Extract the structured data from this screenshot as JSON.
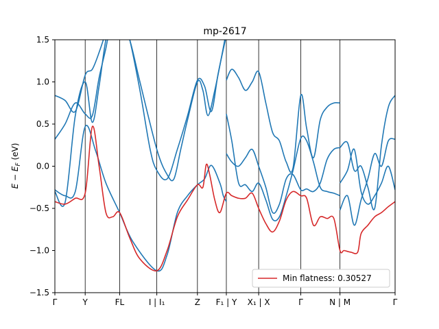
{
  "chart_data": {
    "type": "line",
    "title": "mp-2617",
    "xlabel": "",
    "ylabel": "E − E_F (eV)",
    "ylim": [
      -1.5,
      1.5
    ],
    "yticks": [
      -1.5,
      -1.0,
      -0.5,
      0.0,
      0.5,
      1.0,
      1.5
    ],
    "ytick_labels": [
      "−1.5",
      "−1.0",
      "−0.5",
      "0.0",
      "0.5",
      "1.0",
      "1.5"
    ],
    "xlim": [
      0,
      10
    ],
    "kpath": [
      {
        "label": "Γ",
        "x": 0.0
      },
      {
        "label": "Y",
        "x": 0.891
      },
      {
        "label": "FL",
        "x": 1.903
      },
      {
        "label": "I | I₁",
        "x": 2.996
      },
      {
        "label": "Z",
        "x": 4.19
      },
      {
        "label": "F₁ | Y",
        "x": 5.04
      },
      {
        "label": "X₁ | X",
        "x": 5.99
      },
      {
        "label": "Γ",
        "x": 7.227
      },
      {
        "label": "N | M",
        "x": 8.38
      },
      {
        "label": "Γ",
        "x": 10.0
      }
    ],
    "grid": false,
    "legend_position": "lower-right",
    "series": [
      {
        "name": "",
        "color": "#1f77b4",
        "x": [
          0.0,
          0.3,
          0.6,
          0.891,
          1.2,
          1.5,
          1.903,
          2.3,
          2.996,
          3.3,
          3.6,
          3.9,
          4.19,
          4.4,
          4.6,
          4.85,
          4.95,
          5.04
        ],
        "y": [
          -0.28,
          -0.35,
          -0.3,
          0.47,
          0.18,
          -0.2,
          -0.55,
          -0.9,
          -1.24,
          -1.05,
          -0.55,
          -0.35,
          -0.22,
          -0.15,
          0.01,
          -0.2,
          -0.35,
          -0.42
        ]
      },
      {
        "name": "",
        "color": "#1f77b4",
        "x": [
          0.0,
          0.3,
          0.6,
          0.891,
          1.1,
          1.3,
          1.5,
          1.7,
          1.903,
          2.2,
          2.5,
          2.996,
          3.3,
          3.5,
          3.7,
          3.9,
          4.19,
          4.35,
          4.5,
          4.7,
          4.9,
          5.04
        ],
        "y": [
          0.32,
          0.5,
          0.75,
          0.62,
          0.6,
          1.05,
          1.4,
          1.8,
          1.8,
          1.5,
          1.0,
          0.2,
          -0.1,
          -0.15,
          0.2,
          0.55,
          1.0,
          0.9,
          0.6,
          0.9,
          1.3,
          1.6
        ]
      },
      {
        "name": "",
        "color": "#1f77b4",
        "x": [
          0.0,
          0.3,
          0.6,
          0.891,
          1.1,
          1.3,
          1.5,
          1.7,
          1.903,
          2.2,
          2.5,
          2.8,
          2.996,
          3.3,
          3.6,
          3.9,
          4.19,
          4.4,
          4.6,
          4.8,
          5.04
        ],
        "y": [
          0.84,
          0.78,
          0.65,
          1.08,
          1.15,
          1.35,
          1.6,
          1.9,
          1.9,
          1.5,
          0.9,
          0.2,
          -0.05,
          -0.15,
          0.2,
          0.6,
          1.02,
          0.95,
          0.65,
          1.1,
          1.55
        ]
      },
      {
        "name": "",
        "color": "#1f77b4",
        "x": [
          0.0,
          0.3,
          0.6,
          0.891,
          1.1,
          1.3,
          1.5,
          1.7,
          1.903
        ],
        "y": [
          -0.3,
          -0.43,
          0.6,
          1.0,
          0.52,
          0.95,
          1.5,
          1.7,
          1.7
        ]
      },
      {
        "name": "",
        "color": "#1f77b4",
        "x": [
          5.04,
          5.2,
          5.4,
          5.6,
          5.8,
          5.99,
          6.2,
          6.4,
          6.6,
          6.8,
          7.0,
          7.227,
          7.4,
          7.6,
          7.8,
          8.0,
          8.2,
          8.38
        ],
        "y": [
          0.62,
          0.3,
          -0.2,
          -0.22,
          -0.3,
          -0.2,
          -0.4,
          -0.63,
          -0.6,
          -0.35,
          -0.05,
          0.33,
          0.3,
          0.05,
          -0.25,
          -0.3,
          -0.32,
          -0.35
        ]
      },
      {
        "name": "",
        "color": "#1f77b4",
        "x": [
          5.04,
          5.2,
          5.4,
          5.6,
          5.8,
          5.99,
          6.2,
          6.4,
          6.6,
          6.8,
          7.0,
          7.227,
          7.4,
          7.6,
          7.8,
          8.0,
          8.2,
          8.38
        ],
        "y": [
          1.02,
          1.15,
          1.05,
          0.9,
          1.0,
          1.12,
          0.75,
          0.4,
          0.3,
          0.05,
          -0.02,
          0.84,
          0.45,
          0.1,
          0.55,
          0.7,
          0.75,
          0.75
        ]
      },
      {
        "name": "",
        "color": "#1f77b4",
        "x": [
          5.04,
          5.2,
          5.4,
          5.6,
          5.8,
          5.99,
          6.2,
          6.4,
          6.6,
          6.8,
          7.0,
          7.227,
          7.4,
          7.6,
          7.8,
          8.0,
          8.2,
          8.38
        ],
        "y": [
          0.15,
          0.05,
          0.0,
          0.1,
          0.2,
          0.0,
          -0.25,
          -0.55,
          -0.45,
          -0.15,
          -0.1,
          -0.28,
          -0.27,
          -0.3,
          -0.2,
          0.08,
          0.2,
          0.22
        ]
      },
      {
        "name": "",
        "color": "#1f77b4",
        "x": [
          8.38,
          8.6,
          8.8,
          9.0,
          9.2,
          9.4,
          9.6,
          9.8,
          10.0
        ],
        "y": [
          -0.52,
          -0.35,
          -0.7,
          -0.4,
          -0.15,
          0.15,
          0.0,
          0.3,
          0.32
        ]
      },
      {
        "name": "",
        "color": "#1f77b4",
        "x": [
          8.38,
          8.6,
          8.8,
          9.0,
          9.2,
          9.4,
          9.6,
          9.8,
          10.0
        ],
        "y": [
          0.22,
          0.28,
          -0.05,
          0.0,
          -0.25,
          -0.5,
          0.25,
          0.7,
          0.84
        ]
      },
      {
        "name": "",
        "color": "#1f77b4",
        "x": [
          8.38,
          8.6,
          8.8,
          9.0,
          9.2,
          9.4,
          9.6,
          9.8,
          10.0
        ],
        "y": [
          -0.2,
          -0.05,
          0.2,
          -0.3,
          -0.45,
          -0.35,
          -0.2,
          0.0,
          -0.28
        ]
      },
      {
        "name": "Min flatness: 0.30527",
        "color": "#d62728",
        "x": [
          0.0,
          0.3,
          0.6,
          0.891,
          1.1,
          1.3,
          1.5,
          1.7,
          1.903,
          2.2,
          2.5,
          2.996,
          3.3,
          3.6,
          3.9,
          4.19,
          4.35,
          4.45,
          4.55,
          4.7,
          4.85,
          5.04,
          5.2,
          5.4,
          5.6,
          5.8,
          5.99,
          6.2,
          6.4,
          6.6,
          6.8,
          7.0,
          7.227,
          7.4,
          7.6,
          7.8,
          8.0,
          8.2,
          8.38,
          8.5,
          8.7,
          8.9,
          9.0,
          9.2,
          9.4,
          9.6,
          9.8,
          10.0
        ],
        "y": [
          -0.42,
          -0.45,
          -0.38,
          -0.32,
          0.47,
          0.0,
          -0.55,
          -0.6,
          -0.55,
          -0.85,
          -1.1,
          -1.24,
          -1.0,
          -0.6,
          -0.4,
          -0.22,
          -0.25,
          0.02,
          -0.1,
          -0.4,
          -0.55,
          -0.32,
          -0.35,
          -0.38,
          -0.38,
          -0.32,
          -0.5,
          -0.68,
          -0.78,
          -0.65,
          -0.4,
          -0.3,
          -0.35,
          -0.38,
          -0.7,
          -0.6,
          -0.62,
          -0.62,
          -1.0,
          -1.0,
          -1.02,
          -1.02,
          -0.8,
          -0.7,
          -0.6,
          -0.55,
          -0.48,
          -0.42
        ]
      }
    ]
  }
}
